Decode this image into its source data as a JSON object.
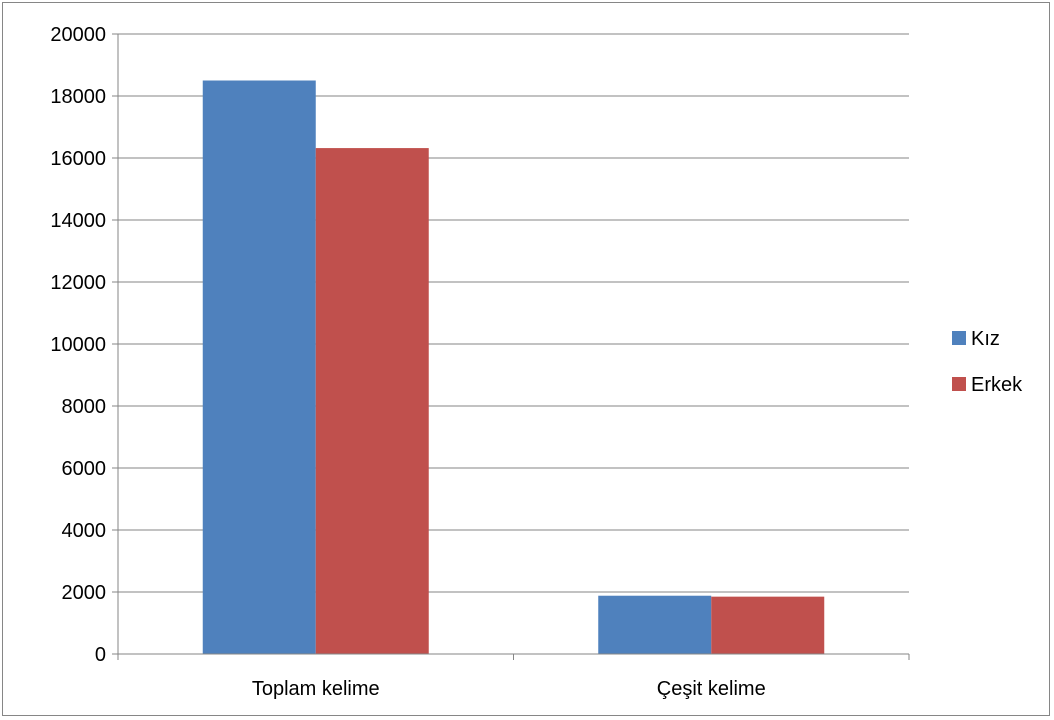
{
  "chart_data": {
    "type": "bar",
    "categories": [
      "Toplam kelime",
      "Çeşit kelime"
    ],
    "series": [
      {
        "name": "Kız",
        "values": [
          18500,
          1880
        ],
        "color": "#4F81BD"
      },
      {
        "name": "Erkek",
        "values": [
          16320,
          1850
        ],
        "color": "#C0504D"
      }
    ],
    "ylim": [
      0,
      20000
    ],
    "yticks": [
      0,
      2000,
      4000,
      6000,
      8000,
      10000,
      12000,
      14000,
      16000,
      18000,
      20000
    ],
    "grid": true,
    "legend_position": "right"
  }
}
